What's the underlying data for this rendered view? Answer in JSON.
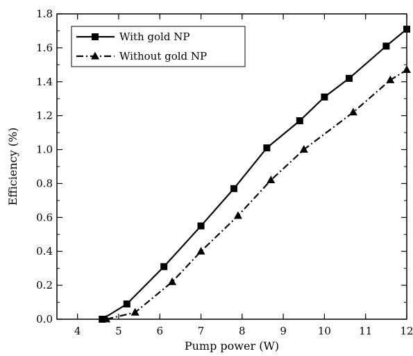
{
  "chart_data": {
    "type": "line",
    "title": "",
    "xlabel": "Pump power (W)",
    "ylabel": "Efficiency (%)",
    "xlim": [
      3.5,
      12
    ],
    "ylim": [
      0,
      1.8
    ],
    "x_ticks": [
      "4",
      "5",
      "6",
      "7",
      "8",
      "9",
      "10",
      "11",
      "12"
    ],
    "y_ticks": [
      "0.0",
      "0.2",
      "0.4",
      "0.6",
      "0.8",
      "1.0",
      "1.2",
      "1.4",
      "1.6",
      "1.8"
    ],
    "grid": false,
    "legend_position": "top-left",
    "series": [
      {
        "name": "With gold NP",
        "marker": "square",
        "line_style": "solid",
        "color": "#000000",
        "x": [
          4.6,
          5.2,
          6.1,
          7.0,
          7.8,
          8.6,
          9.4,
          10.0,
          10.6,
          11.5,
          12.0
        ],
        "y": [
          0.0,
          0.09,
          0.31,
          0.55,
          0.77,
          1.01,
          1.17,
          1.31,
          1.42,
          1.61,
          1.71
        ]
      },
      {
        "name": "Without gold NP",
        "marker": "triangle",
        "line_style": "dash-dot",
        "color": "#000000",
        "x": [
          4.7,
          5.4,
          6.3,
          7.0,
          7.9,
          8.7,
          9.5,
          10.7,
          11.6,
          12.0
        ],
        "y": [
          0.0,
          0.04,
          0.22,
          0.4,
          0.61,
          0.82,
          1.0,
          1.22,
          1.41,
          1.47
        ]
      }
    ]
  }
}
